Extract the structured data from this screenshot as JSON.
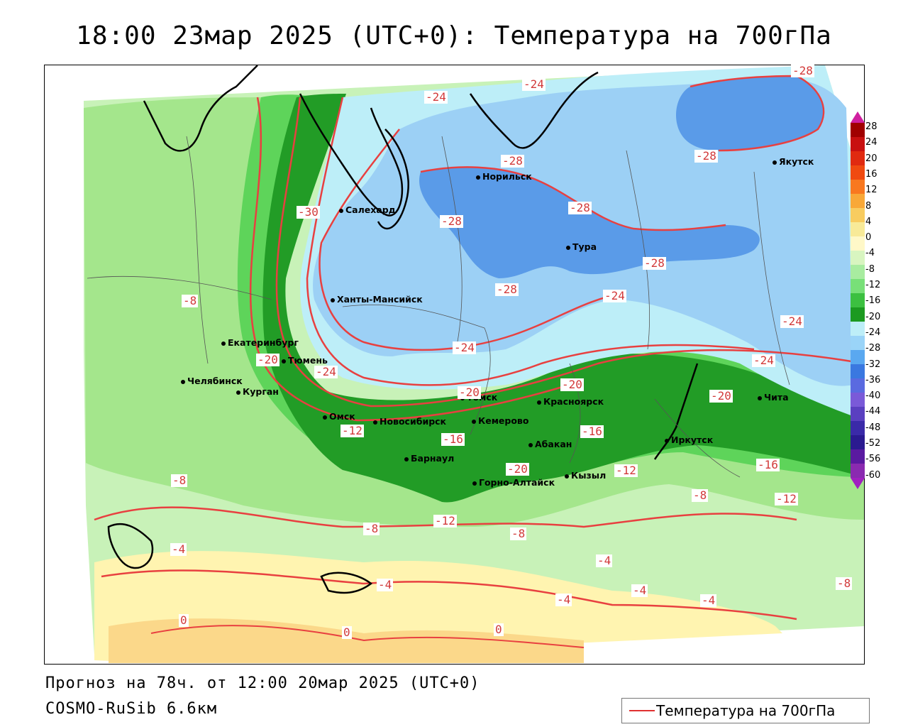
{
  "title": "18:00 23мар 2025 (UTC+0): Температура на 700гПа",
  "footer": {
    "forecast": "Прогноз на 78ч. от 12:00 20мар 2025 (UTC+0)",
    "model": "COSMO-RuSib 6.6км"
  },
  "legend": {
    "label": "Температура на 700гПа",
    "line_color": "#e03030"
  },
  "colorbar": {
    "labels": [
      "28",
      "24",
      "20",
      "16",
      "12",
      "8",
      "4",
      "0",
      "-4",
      "-8",
      "-12",
      "-16",
      "-20",
      "-24",
      "-28",
      "-32",
      "-36",
      "-40",
      "-44",
      "-48",
      "-52",
      "-56",
      "-60"
    ],
    "colors": [
      "#a00000",
      "#c81010",
      "#e02a10",
      "#f04a10",
      "#f87820",
      "#f8a838",
      "#f8cc60",
      "#f8ea98",
      "#fff8c8",
      "#d8f5c0",
      "#a8eca0",
      "#78e078",
      "#3cc040",
      "#1c9a20",
      "#bdeef8",
      "#9ad4f8",
      "#5aa8f0",
      "#3a78e0",
      "#5a6ae0",
      "#7a5ad8",
      "#5a40c0",
      "#3a2aa8",
      "#2a1a90",
      "#5a1aa0",
      "#8a2ab0"
    ],
    "top_arrow_color": "#d020a0",
    "bottom_arrow_color": "#a020c0"
  },
  "cities": [
    {
      "name": "Норильск"
    },
    {
      "name": "Якутск"
    },
    {
      "name": "Салехард"
    },
    {
      "name": "Тура"
    },
    {
      "name": "Ханты-Мансийск"
    },
    {
      "name": "Екатеринбург"
    },
    {
      "name": "Тюмень"
    },
    {
      "name": "Челябинск"
    },
    {
      "name": "Курган"
    },
    {
      "name": "Омск"
    },
    {
      "name": "Новосибирск"
    },
    {
      "name": "Томск"
    },
    {
      "name": "Кемерово"
    },
    {
      "name": "Красноярск"
    },
    {
      "name": "Барнаул"
    },
    {
      "name": "Абакан"
    },
    {
      "name": "Горно-Алтайск"
    },
    {
      "name": "Кызыл"
    },
    {
      "name": "Иркутск"
    },
    {
      "name": "Чита"
    }
  ],
  "isotherm_labels": [
    "-24",
    "-24",
    "-28",
    "-28",
    "-28",
    "-28",
    "-28",
    "-28",
    "-30",
    "-28",
    "-24",
    "-24",
    "-24",
    "-24",
    "-8",
    "-20",
    "-24",
    "-20",
    "-20",
    "-20",
    "-12",
    "-16",
    "-16",
    "-16",
    "-12",
    "-12",
    "-20",
    "-8",
    "-8",
    "-12",
    "-8",
    "-4",
    "-4",
    "-4",
    "-4",
    "-4",
    "-4",
    "-8",
    "-8",
    "0",
    "0",
    "0"
  ]
}
